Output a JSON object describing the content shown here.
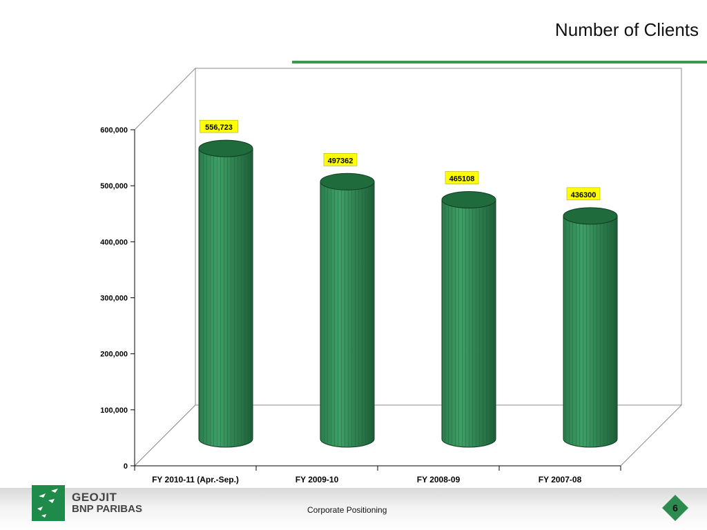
{
  "slide": {
    "title": "Number of Clients",
    "footer_text": "Corporate Positioning",
    "page_number": "6"
  },
  "brand": {
    "line1": "GEOJIT",
    "line2": "BNP PARIBAS"
  },
  "colors": {
    "bar_body": "#2e8b57",
    "bar_top": "#1f6b3c",
    "label_bg": "#ffff00",
    "accent": "#3a9a4c"
  },
  "icons": {
    "logo": "bnp-paribas-stars-logo",
    "page_badge": "green-diamond-badge"
  },
  "chart_data": {
    "type": "bar",
    "style": "3d-cylinder",
    "categories": [
      "FY 2010-11 (Apr.-Sep.)",
      "FY 2009-10",
      "FY 2008-09",
      "FY 2007-08"
    ],
    "values": [
      556723,
      497362,
      465108,
      436300
    ],
    "data_labels": [
      "556,723",
      "497362",
      "465108",
      "436300"
    ],
    "title": "",
    "xlabel": "",
    "ylabel": "",
    "ylim": [
      0,
      600000
    ],
    "yticks": [
      0,
      100000,
      200000,
      300000,
      400000,
      500000,
      600000
    ],
    "ytick_labels": [
      "0",
      "100,000",
      "200,000",
      "300,000",
      "400,000",
      "500,000",
      "600,000"
    ],
    "grid": false,
    "legend": "none"
  }
}
